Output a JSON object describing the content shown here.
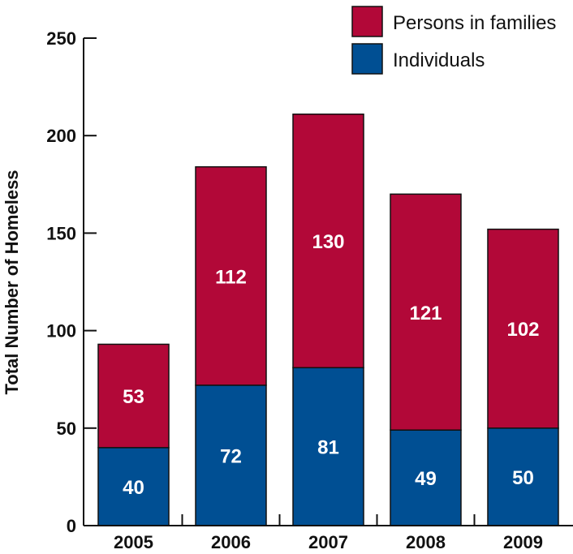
{
  "chart_data": {
    "type": "bar",
    "stacked": true,
    "categories": [
      "2005",
      "2006",
      "2007",
      "2008",
      "2009"
    ],
    "series": [
      {
        "name": "Individuals",
        "values": [
          40,
          72,
          81,
          49,
          50
        ],
        "color": "#004f93"
      },
      {
        "name": "Persons in families",
        "values": [
          53,
          112,
          130,
          121,
          102
        ],
        "color": "#b20838"
      }
    ],
    "title": "",
    "xlabel": "",
    "ylabel": "Total Number of Homeless",
    "ylim": [
      0,
      250
    ],
    "yticks": [
      0,
      50,
      100,
      150,
      200,
      250
    ],
    "grid": false,
    "legend": {
      "placement": "top-right",
      "order": [
        "Persons in families",
        "Individuals"
      ]
    }
  }
}
